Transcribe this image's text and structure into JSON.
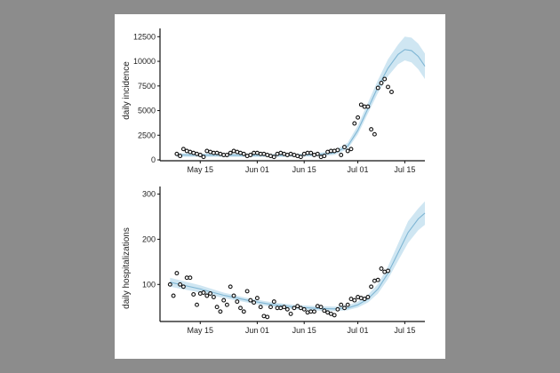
{
  "chart_data": [
    {
      "type": "line",
      "ylabel": "daily incidence",
      "xlabel": "",
      "x_ticks": [
        "May 15",
        "Jun 01",
        "Jun 15",
        "Jul 01",
        "Jul 15"
      ],
      "y_ticks": [
        0,
        2500,
        5000,
        7500,
        10000,
        12500
      ],
      "xlim": [
        "2020-05-03",
        "2020-07-21"
      ],
      "ylim": [
        0,
        12800
      ],
      "colors": {
        "points": "#111111",
        "fit_line": "#7fb6d4",
        "ribbon": "#cfe6f2"
      },
      "series": [
        {
          "kind": "observed",
          "marker": "open-circle",
          "x": [
            "2020-05-08",
            "2020-05-09",
            "2020-05-10",
            "2020-05-11",
            "2020-05-12",
            "2020-05-13",
            "2020-05-14",
            "2020-05-15",
            "2020-05-16",
            "2020-05-17",
            "2020-05-18",
            "2020-05-19",
            "2020-05-20",
            "2020-05-21",
            "2020-05-22",
            "2020-05-23",
            "2020-05-24",
            "2020-05-25",
            "2020-05-26",
            "2020-05-27",
            "2020-05-28",
            "2020-05-29",
            "2020-05-30",
            "2020-05-31",
            "2020-06-01",
            "2020-06-02",
            "2020-06-03",
            "2020-06-04",
            "2020-06-05",
            "2020-06-06",
            "2020-06-07",
            "2020-06-08",
            "2020-06-09",
            "2020-06-10",
            "2020-06-11",
            "2020-06-12",
            "2020-06-13",
            "2020-06-14",
            "2020-06-15",
            "2020-06-16",
            "2020-06-17",
            "2020-06-18",
            "2020-06-19",
            "2020-06-20",
            "2020-06-21",
            "2020-06-22",
            "2020-06-23",
            "2020-06-24",
            "2020-06-25",
            "2020-06-26",
            "2020-06-27",
            "2020-06-28",
            "2020-06-29",
            "2020-06-30",
            "2020-07-01",
            "2020-07-02",
            "2020-07-03",
            "2020-07-04",
            "2020-07-05",
            "2020-07-06",
            "2020-07-07",
            "2020-07-08",
            "2020-07-09",
            "2020-07-10"
          ],
          "y": [
            600,
            400,
            1100,
            900,
            800,
            700,
            600,
            500,
            300,
            900,
            800,
            700,
            700,
            600,
            500,
            500,
            700,
            900,
            800,
            700,
            600,
            400,
            500,
            700,
            700,
            600,
            600,
            500,
            400,
            300,
            600,
            700,
            600,
            500,
            600,
            500,
            400,
            300,
            600,
            700,
            700,
            500,
            600,
            300,
            400,
            800,
            900,
            900,
            1000,
            500,
            1300,
            900,
            1100,
            3700,
            4300,
            5600,
            5400,
            5400,
            3100,
            2600,
            7300,
            7800,
            8200,
            7400
          ],
          "y_tail": [
            6900
          ]
        },
        {
          "kind": "fit",
          "x": [
            "2020-05-08",
            "2020-05-15",
            "2020-05-22",
            "2020-05-29",
            "2020-06-05",
            "2020-06-12",
            "2020-06-19",
            "2020-06-24",
            "2020-06-28",
            "2020-07-01",
            "2020-07-04",
            "2020-07-07",
            "2020-07-10",
            "2020-07-13",
            "2020-07-15",
            "2020-07-17",
            "2020-07-19",
            "2020-07-21"
          ],
          "y": [
            500,
            480,
            470,
            460,
            450,
            450,
            520,
            700,
            1400,
            3000,
            5200,
            7400,
            9300,
            10700,
            11200,
            11100,
            10500,
            9500
          ],
          "lower": [
            300,
            300,
            300,
            300,
            300,
            300,
            350,
            500,
            1100,
            2600,
            4700,
            6800,
            8500,
            9700,
            10100,
            9900,
            9200,
            8200
          ],
          "upper": [
            700,
            650,
            640,
            620,
            600,
            600,
            700,
            950,
            1750,
            3500,
            5800,
            8100,
            10200,
            11700,
            12500,
            12400,
            11800,
            10800
          ]
        }
      ]
    },
    {
      "type": "line",
      "ylabel": "daily hospitalizations",
      "xlabel": "",
      "x_ticks": [
        "May 15",
        "Jun 01",
        "Jun 15",
        "Jul 01",
        "Jul 15"
      ],
      "y_ticks": [
        100,
        200,
        300
      ],
      "xlim": [
        "2020-05-03",
        "2020-07-21"
      ],
      "ylim": [
        20,
        305
      ],
      "colors": {
        "points": "#111111",
        "fit_line": "#7fb6d4",
        "ribbon": "#cfe6f2"
      },
      "series": [
        {
          "kind": "observed",
          "marker": "open-circle",
          "x": [
            "2020-05-06",
            "2020-05-07",
            "2020-05-08",
            "2020-05-09",
            "2020-05-10",
            "2020-05-11",
            "2020-05-12",
            "2020-05-13",
            "2020-05-14",
            "2020-05-15",
            "2020-05-16",
            "2020-05-17",
            "2020-05-18",
            "2020-05-19",
            "2020-05-20",
            "2020-05-21",
            "2020-05-22",
            "2020-05-23",
            "2020-05-24",
            "2020-05-25",
            "2020-05-26",
            "2020-05-27",
            "2020-05-28",
            "2020-05-29",
            "2020-05-30",
            "2020-05-31",
            "2020-06-01",
            "2020-06-02",
            "2020-06-03",
            "2020-06-04",
            "2020-06-05",
            "2020-06-06",
            "2020-06-07",
            "2020-06-08",
            "2020-06-09",
            "2020-06-10",
            "2020-06-11",
            "2020-06-12",
            "2020-06-13",
            "2020-06-14",
            "2020-06-15",
            "2020-06-16",
            "2020-06-17",
            "2020-06-18",
            "2020-06-19",
            "2020-06-20",
            "2020-06-21",
            "2020-06-22",
            "2020-06-23",
            "2020-06-24",
            "2020-06-25",
            "2020-06-26",
            "2020-06-27",
            "2020-06-28",
            "2020-06-29",
            "2020-06-30",
            "2020-07-01",
            "2020-07-02",
            "2020-07-03",
            "2020-07-04",
            "2020-07-05",
            "2020-07-06",
            "2020-07-07",
            "2020-07-08",
            "2020-07-09",
            "2020-07-10"
          ],
          "y": [
            100,
            75,
            125,
            100,
            95,
            115,
            115,
            78,
            55,
            80,
            82,
            75,
            80,
            72,
            50,
            40,
            65,
            55,
            95,
            75,
            62,
            48,
            40,
            85,
            65,
            60,
            70,
            50,
            30,
            28,
            50,
            62,
            48,
            48,
            50,
            45,
            35,
            48,
            52,
            48,
            45,
            38,
            40,
            40,
            52,
            50,
            42,
            38,
            35,
            32,
            45,
            55,
            48,
            55,
            68,
            65,
            72,
            70,
            68,
            72,
            95,
            108,
            110,
            135,
            128,
            130
          ]
        },
        {
          "kind": "fit",
          "x": [
            "2020-05-06",
            "2020-05-15",
            "2020-05-22",
            "2020-05-29",
            "2020-06-05",
            "2020-06-12",
            "2020-06-19",
            "2020-06-24",
            "2020-06-28",
            "2020-07-01",
            "2020-07-04",
            "2020-07-07",
            "2020-07-10",
            "2020-07-13",
            "2020-07-16",
            "2020-07-19",
            "2020-07-21"
          ],
          "y": [
            105,
            90,
            76,
            65,
            56,
            50,
            47,
            46,
            48,
            55,
            68,
            90,
            125,
            170,
            215,
            245,
            258
          ],
          "lower": [
            95,
            82,
            70,
            60,
            51,
            45,
            42,
            41,
            43,
            49,
            60,
            80,
            112,
            152,
            192,
            220,
            232
          ],
          "upper": [
            115,
            98,
            82,
            70,
            61,
            55,
            52,
            51,
            54,
            62,
            77,
            101,
            140,
            190,
            240,
            268,
            284
          ]
        }
      ]
    }
  ]
}
